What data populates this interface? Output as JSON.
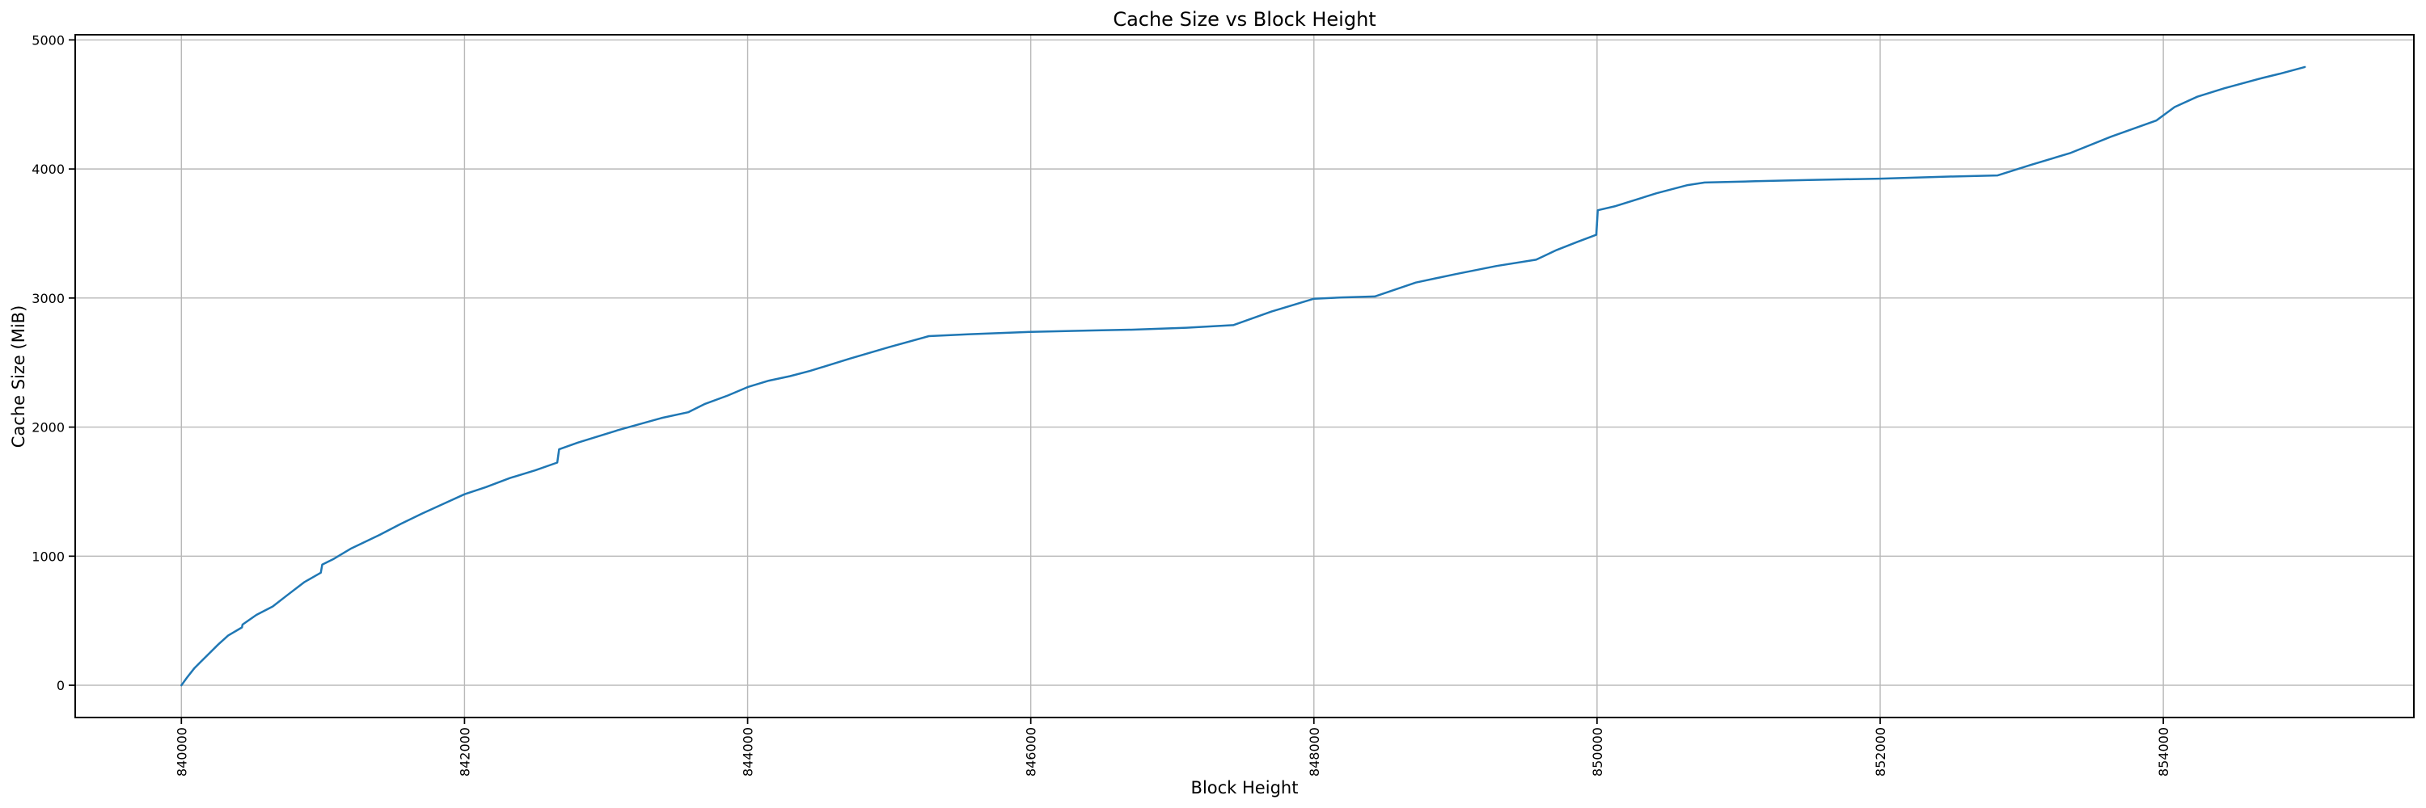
{
  "figure": {
    "background": "#ffffff"
  },
  "chart_data": {
    "type": "line",
    "title": "Cache Size vs Block Height",
    "xlabel": "Block Height",
    "ylabel": "Cache Size (MiB)",
    "legend": "none",
    "grid": true,
    "grid_color": "#b8b8b8",
    "spine_color": "#000000",
    "line_color": "#1f77b4",
    "x_ticks": [
      840000,
      842000,
      844000,
      846000,
      848000,
      850000,
      852000,
      854000
    ],
    "y_ticks": [
      0,
      1000,
      2000,
      3000,
      4000,
      5000
    ],
    "x_tick_rotation": 90,
    "x_range": [
      839250,
      855770
    ],
    "y_range": [
      -250,
      5040
    ],
    "series": [
      {
        "name": "cache-size",
        "color": "#1f77b4",
        "points": [
          [
            840000,
            0
          ],
          [
            840040,
            60
          ],
          [
            840090,
            130
          ],
          [
            840140,
            185
          ],
          [
            840200,
            250
          ],
          [
            840260,
            315
          ],
          [
            840330,
            385
          ],
          [
            840428,
            448
          ],
          [
            840432,
            470
          ],
          [
            840530,
            545
          ],
          [
            840645,
            610
          ],
          [
            840750,
            700
          ],
          [
            840870,
            800
          ],
          [
            840985,
            872
          ],
          [
            840995,
            935
          ],
          [
            841070,
            975
          ],
          [
            841200,
            1060
          ],
          [
            841400,
            1165
          ],
          [
            841550,
            1250
          ],
          [
            841700,
            1330
          ],
          [
            841850,
            1405
          ],
          [
            842000,
            1480
          ],
          [
            842150,
            1535
          ],
          [
            842320,
            1605
          ],
          [
            842500,
            1665
          ],
          [
            842655,
            1725
          ],
          [
            842668,
            1828
          ],
          [
            842800,
            1880
          ],
          [
            843080,
            1975
          ],
          [
            843390,
            2070
          ],
          [
            843580,
            2115
          ],
          [
            843700,
            2180
          ],
          [
            843860,
            2245
          ],
          [
            844000,
            2310
          ],
          [
            844150,
            2360
          ],
          [
            844300,
            2395
          ],
          [
            844440,
            2435
          ],
          [
            844720,
            2530
          ],
          [
            845000,
            2620
          ],
          [
            845280,
            2705
          ],
          [
            845570,
            2720
          ],
          [
            846000,
            2738
          ],
          [
            846400,
            2748
          ],
          [
            846720,
            2755
          ],
          [
            847100,
            2770
          ],
          [
            847430,
            2790
          ],
          [
            847700,
            2895
          ],
          [
            848000,
            2995
          ],
          [
            848200,
            3005
          ],
          [
            848430,
            3012
          ],
          [
            848720,
            3120
          ],
          [
            849000,
            3185
          ],
          [
            849290,
            3248
          ],
          [
            849570,
            3297
          ],
          [
            849715,
            3372
          ],
          [
            849860,
            3435
          ],
          [
            849995,
            3490
          ],
          [
            850005,
            3680
          ],
          [
            850130,
            3712
          ],
          [
            850420,
            3812
          ],
          [
            850640,
            3875
          ],
          [
            850760,
            3895
          ],
          [
            851120,
            3905
          ],
          [
            851500,
            3915
          ],
          [
            852000,
            3925
          ],
          [
            852490,
            3941
          ],
          [
            852830,
            3950
          ],
          [
            853060,
            4030
          ],
          [
            853340,
            4122
          ],
          [
            853630,
            4250
          ],
          [
            853950,
            4375
          ],
          [
            854080,
            4480
          ],
          [
            854240,
            4560
          ],
          [
            854430,
            4625
          ],
          [
            854700,
            4705
          ],
          [
            854820,
            4737
          ],
          [
            855000,
            4790
          ]
        ]
      }
    ]
  }
}
